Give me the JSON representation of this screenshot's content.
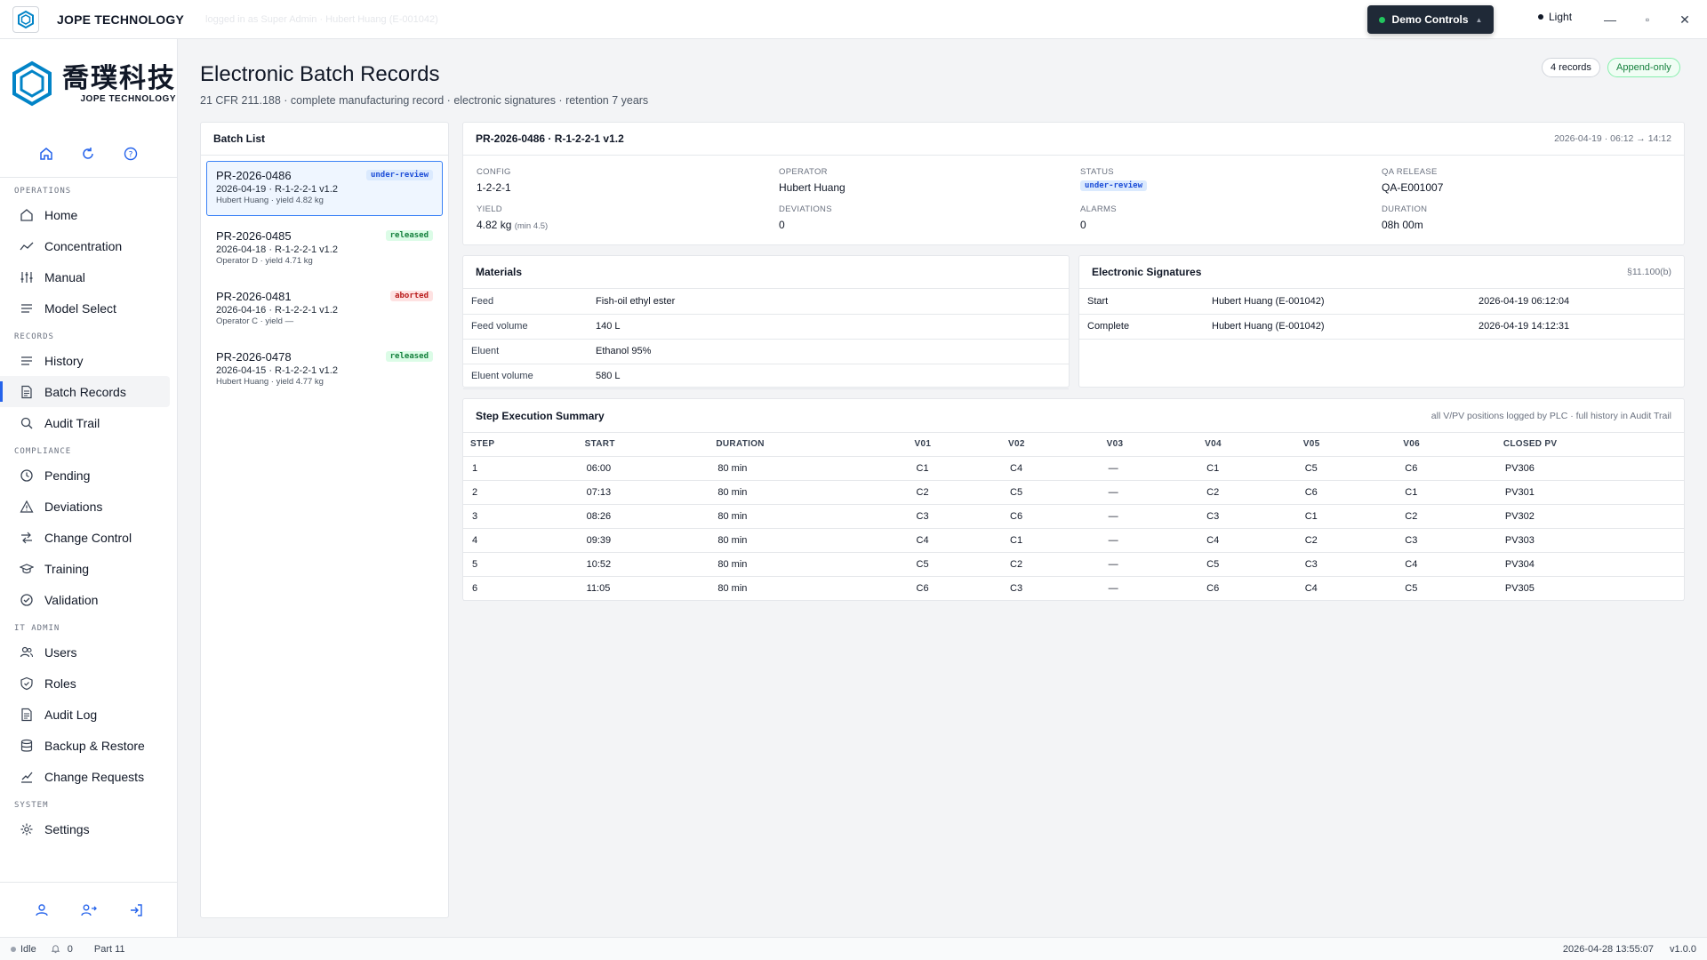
{
  "titlebar": {
    "app_name": "JOPE TECHNOLOGY",
    "logged_in_text": "logged in as Super Admin · Hubert Huang (E-001042)",
    "demo_controls": "Demo Controls",
    "theme": "Light",
    "minimize": "—",
    "maximize": "▫",
    "close": "✕"
  },
  "brand": {
    "cn": "喬璞科技",
    "en": "JOPE TECHNOLOGY"
  },
  "sidebar": {
    "sections": [
      {
        "label": "OPERATIONS",
        "items": [
          {
            "label": "Home",
            "icon": "home-icon"
          },
          {
            "label": "Concentration",
            "icon": "trend-icon"
          },
          {
            "label": "Manual",
            "icon": "sliders-icon"
          },
          {
            "label": "Model Select",
            "icon": "list-icon"
          }
        ]
      },
      {
        "label": "RECORDS",
        "items": [
          {
            "label": "History",
            "icon": "list-icon"
          },
          {
            "label": "Batch Records",
            "icon": "document-icon",
            "active": true
          },
          {
            "label": "Audit Trail",
            "icon": "search-icon"
          }
        ]
      },
      {
        "label": "COMPLIANCE",
        "items": [
          {
            "label": "Pending",
            "icon": "clock-icon"
          },
          {
            "label": "Deviations",
            "icon": "warning-icon"
          },
          {
            "label": "Change Control",
            "icon": "swap-icon"
          },
          {
            "label": "Training",
            "icon": "graduation-icon"
          },
          {
            "label": "Validation",
            "icon": "check-circle-icon"
          }
        ]
      },
      {
        "label": "IT ADMIN",
        "items": [
          {
            "label": "Users",
            "icon": "users-icon"
          },
          {
            "label": "Roles",
            "icon": "shield-icon"
          },
          {
            "label": "Audit Log",
            "icon": "document-icon"
          },
          {
            "label": "Backup & Restore",
            "icon": "database-icon"
          },
          {
            "label": "Change Requests",
            "icon": "chart-icon"
          }
        ]
      },
      {
        "label": "SYSTEM",
        "items": [
          {
            "label": "Settings",
            "icon": "gear-icon"
          }
        ]
      }
    ]
  },
  "page": {
    "title": "Electronic Batch Records",
    "subtitle": "21 CFR 211.188 · complete manufacturing record · electronic signatures · retention 7 years",
    "records_badge": "4 records",
    "mode_badge": "Append-only"
  },
  "batch_list": {
    "title": "Batch List",
    "items": [
      {
        "id": "PR-2026-0486",
        "line": "2026-04-19 · R-1-2-2-1 v1.2",
        "meta": "Hubert Huang · yield 4.82 kg",
        "status": "under-review"
      },
      {
        "id": "PR-2026-0485",
        "line": "2026-04-18 · R-1-2-2-1 v1.2",
        "meta": "Operator D · yield 4.71 kg",
        "status": "released"
      },
      {
        "id": "PR-2026-0481",
        "line": "2026-04-16 · R-1-2-2-1 v1.2",
        "meta": "Operator C · yield —",
        "status": "aborted"
      },
      {
        "id": "PR-2026-0478",
        "line": "2026-04-15 · R-1-2-2-1 v1.2",
        "meta": "Hubert Huang · yield 4.77 kg",
        "status": "released"
      }
    ]
  },
  "detail": {
    "title": "PR-2026-0486 · R-1-2-2-1 v1.2",
    "time_range": "2026-04-19 · 06:12 → 14:12",
    "config_label": "CONFIG",
    "config": "1-2-2-1",
    "operator_label": "OPERATOR",
    "operator": "Hubert Huang",
    "status_label": "STATUS",
    "status": "under-review",
    "qa_label": "QA RELEASE",
    "qa": "QA-E001007",
    "yield_label": "YIELD",
    "yield": "4.82 kg",
    "yield_min": "(min 4.5)",
    "deviations_label": "DEVIATIONS",
    "deviations": "0",
    "alarms_label": "ALARMS",
    "alarms": "0",
    "duration_label": "DURATION",
    "duration": "08h 00m"
  },
  "materials": {
    "title": "Materials",
    "rows": [
      {
        "label": "Feed",
        "value": "Fish-oil ethyl ester"
      },
      {
        "label": "Feed volume",
        "value": "140 L"
      },
      {
        "label": "Eluent",
        "value": "Ethanol 95%"
      },
      {
        "label": "Eluent volume",
        "value": "580 L"
      }
    ]
  },
  "signatures": {
    "title": "Electronic Signatures",
    "ref": "§11.100(b)",
    "rows": [
      {
        "type": "Start",
        "signer": "Hubert Huang (E-001042)",
        "time": "2026-04-19 06:12:04"
      },
      {
        "type": "Complete",
        "signer": "Hubert Huang (E-001042)",
        "time": "2026-04-19 14:12:31"
      }
    ]
  },
  "steps": {
    "title": "Step Execution Summary",
    "note": "all V/PV positions logged by PLC · full history in Audit Trail",
    "headers": [
      "STEP",
      "START",
      "DURATION",
      "V01",
      "V02",
      "V03",
      "V04",
      "V05",
      "V06",
      "CLOSED PV"
    ],
    "rows": [
      [
        "1",
        "06:00",
        "80 min",
        "C1",
        "C4",
        "—",
        "C1",
        "C5",
        "C6",
        "PV306"
      ],
      [
        "2",
        "07:13",
        "80 min",
        "C2",
        "C5",
        "—",
        "C2",
        "C6",
        "C1",
        "PV301"
      ],
      [
        "3",
        "08:26",
        "80 min",
        "C3",
        "C6",
        "—",
        "C3",
        "C1",
        "C2",
        "PV302"
      ],
      [
        "4",
        "09:39",
        "80 min",
        "C4",
        "C1",
        "—",
        "C4",
        "C2",
        "C3",
        "PV303"
      ],
      [
        "5",
        "10:52",
        "80 min",
        "C5",
        "C2",
        "—",
        "C5",
        "C3",
        "C4",
        "PV304"
      ],
      [
        "6",
        "11:05",
        "80 min",
        "C6",
        "C3",
        "—",
        "C6",
        "C4",
        "C5",
        "PV305"
      ]
    ]
  },
  "statusbar": {
    "state": "Idle",
    "notifications": "0",
    "mode": "Part 11",
    "datetime": "2026-04-28 13:55:07",
    "version": "v1.0.0"
  },
  "colors": {
    "accent": "#2563eb",
    "released": "#15803d",
    "aborted": "#b91c1c",
    "review": "#1d4ed8"
  }
}
